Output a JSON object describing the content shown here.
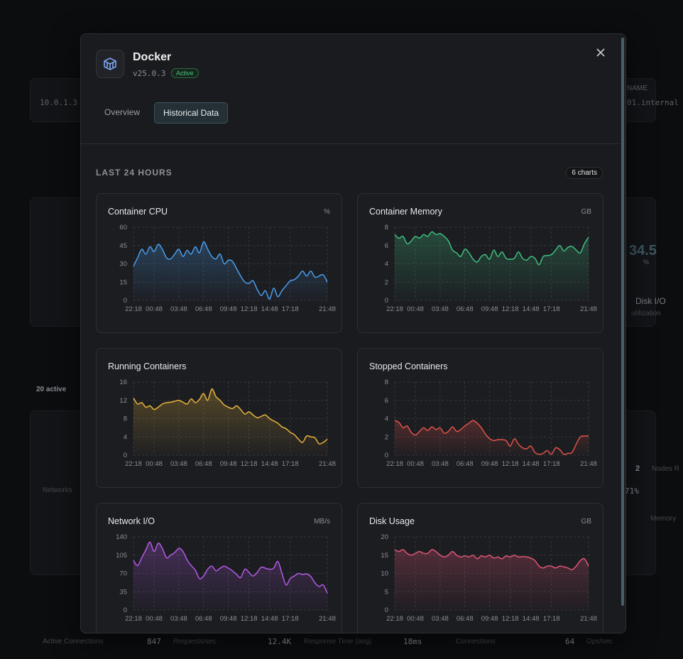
{
  "background": {
    "texts": [
      "10.0.1.3",
      "NAME",
      "01.internal",
      "34.5",
      "%",
      "Disk I/O",
      "utilization",
      "20 active",
      "2",
      "Nodes R",
      "Networks",
      "71%",
      "Memory",
      "Active Connections",
      "847",
      "Requests/sec",
      "12.4K",
      "Response Time (avg)",
      "18ms",
      "Connections",
      "64",
      "Ops/sec"
    ]
  },
  "modal": {
    "title": "Docker",
    "version": "v25.0.3",
    "status": "Active",
    "tabs": [
      "Overview",
      "Historical Data"
    ],
    "section": "LAST 24 HOURS",
    "count": "6 charts"
  },
  "chart_data": [
    {
      "type": "line",
      "title": "Container CPU",
      "unit": "%",
      "color": "#4a9eed",
      "grid": true,
      "categories": [
        "22:18",
        null,
        null,
        null,
        null,
        "00:48",
        null,
        null,
        null,
        null,
        null,
        "03:48",
        null,
        null,
        null,
        null,
        null,
        "06:48",
        null,
        null,
        null,
        null,
        null,
        "09:48",
        null,
        null,
        null,
        null,
        "12:18",
        null,
        null,
        null,
        null,
        "14:48",
        null,
        null,
        null,
        null,
        "17:18",
        null,
        null,
        null,
        null,
        null,
        null,
        null,
        null,
        "21:48"
      ],
      "values": [
        28,
        35,
        42,
        38,
        44,
        40,
        46,
        42,
        35,
        34,
        38,
        42,
        36,
        41,
        38,
        44,
        39,
        48,
        42,
        36,
        34,
        38,
        30,
        33,
        32,
        26,
        20,
        15,
        14,
        16,
        9,
        4,
        8,
        1,
        10,
        3,
        8,
        12,
        16,
        17,
        20,
        24,
        20,
        24,
        19,
        20,
        21,
        15
      ],
      "ylim": [
        0,
        60
      ],
      "yticks": [
        0,
        15,
        30,
        45,
        60
      ]
    },
    {
      "type": "line",
      "title": "Container Memory",
      "unit": "GB",
      "color": "#3fbf7f",
      "grid": true,
      "categories": [
        "22:18",
        null,
        null,
        null,
        null,
        "00:48",
        null,
        null,
        null,
        null,
        null,
        "03:48",
        null,
        null,
        null,
        null,
        null,
        "06:48",
        null,
        null,
        null,
        null,
        null,
        "09:48",
        null,
        null,
        null,
        null,
        "12:18",
        null,
        null,
        null,
        null,
        "14:48",
        null,
        null,
        null,
        null,
        "17:18",
        null,
        null,
        null,
        null,
        null,
        null,
        null,
        null,
        "21:48"
      ],
      "values": [
        7.2,
        6.8,
        7,
        6.2,
        6.5,
        7,
        6.8,
        7.2,
        7,
        7.5,
        7.2,
        7.3,
        7,
        6.5,
        5.5,
        5.2,
        4.8,
        5.6,
        5.2,
        4.5,
        4.2,
        4.8,
        5,
        4.5,
        5.5,
        4.8,
        5.3,
        4.6,
        4.5,
        4.6,
        5.3,
        4.6,
        4.4,
        4.8,
        4.6,
        3.9,
        4.8,
        4.9,
        5,
        5.5,
        6,
        5.4,
        5.8,
        5.9,
        5.5,
        5.2,
        6.2,
        6.9
      ],
      "ylim": [
        0,
        8
      ],
      "yticks": [
        0,
        2,
        4,
        6,
        8
      ]
    },
    {
      "type": "line",
      "title": "Running Containers",
      "color": "#e8b53a",
      "grid": true,
      "categories": [
        "22:18",
        null,
        null,
        null,
        null,
        "00:48",
        null,
        null,
        null,
        null,
        null,
        "03:48",
        null,
        null,
        null,
        null,
        null,
        "06:48",
        null,
        null,
        null,
        null,
        null,
        "09:48",
        null,
        null,
        null,
        null,
        "12:18",
        null,
        null,
        null,
        null,
        "14:48",
        null,
        null,
        null,
        null,
        "17:18",
        null,
        null,
        null,
        null,
        null,
        null,
        null,
        null,
        "21:48"
      ],
      "values": [
        12.5,
        11.2,
        11.5,
        10.5,
        10.8,
        10,
        10.5,
        11.2,
        11.5,
        11.6,
        11.8,
        12,
        11.6,
        11.2,
        12.3,
        11.5,
        12.2,
        13.5,
        12,
        14.5,
        12.8,
        12,
        11,
        10.5,
        10.2,
        10.8,
        10,
        9,
        9.5,
        8.8,
        8.2,
        8.5,
        8.8,
        8,
        7.5,
        7,
        6.2,
        5.8,
        5,
        4.5,
        3.5,
        2.8,
        4.2,
        4,
        3.8,
        2.5,
        2.8,
        3.5
      ],
      "ylim": [
        0,
        16
      ],
      "yticks": [
        0,
        4,
        8,
        12,
        16
      ]
    },
    {
      "type": "line",
      "title": "Stopped Containers",
      "color": "#e0524a",
      "grid": true,
      "categories": [
        "22:18",
        null,
        null,
        null,
        null,
        "00:48",
        null,
        null,
        null,
        null,
        null,
        "03:48",
        null,
        null,
        null,
        null,
        null,
        "06:48",
        null,
        null,
        null,
        null,
        null,
        "09:48",
        null,
        null,
        null,
        null,
        "12:18",
        null,
        null,
        null,
        null,
        "14:48",
        null,
        null,
        null,
        null,
        "17:18",
        null,
        null,
        null,
        null,
        null,
        null,
        null,
        null,
        "21:48"
      ],
      "values": [
        3.8,
        3.6,
        3,
        3.2,
        2.5,
        2.2,
        2.6,
        3,
        2.7,
        3.1,
        2.8,
        3,
        2.4,
        2.6,
        3.1,
        2.6,
        2.8,
        3.2,
        3.5,
        3.8,
        3.5,
        3,
        2.3,
        1.8,
        1.6,
        1.7,
        1.7,
        1.6,
        1,
        1.8,
        1.2,
        0.8,
        0.7,
        1,
        0.3,
        0.1,
        0.2,
        0.5,
        0.1,
        0.8,
        0.6,
        0.1,
        0.2,
        0.3,
        1.2,
        2,
        2.1,
        2.1
      ],
      "ylim": [
        0,
        8
      ],
      "yticks": [
        0,
        2,
        4,
        6,
        8
      ]
    },
    {
      "type": "line",
      "title": "Network I/O",
      "unit": "MB/s",
      "color": "#b45ae6",
      "grid": true,
      "categories": [
        "22:18",
        null,
        null,
        null,
        null,
        "00:48",
        null,
        null,
        null,
        null,
        null,
        "03:48",
        null,
        null,
        null,
        null,
        null,
        "06:48",
        null,
        null,
        null,
        null,
        null,
        "09:48",
        null,
        null,
        null,
        null,
        "12:18",
        null,
        null,
        null,
        null,
        "14:48",
        null,
        null,
        null,
        null,
        "17:18",
        null,
        null,
        null,
        null,
        null,
        null,
        null,
        null,
        "21:48"
      ],
      "values": [
        95,
        85,
        100,
        115,
        130,
        112,
        128,
        118,
        100,
        105,
        110,
        118,
        112,
        96,
        85,
        76,
        60,
        65,
        78,
        84,
        75,
        80,
        84,
        80,
        75,
        68,
        62,
        78,
        72,
        65,
        72,
        82,
        80,
        78,
        80,
        93,
        70,
        48,
        60,
        65,
        70,
        68,
        69,
        64,
        52,
        45,
        48,
        32
      ],
      "ylim": [
        0,
        140
      ],
      "yticks": [
        0,
        35,
        70,
        105,
        140
      ]
    },
    {
      "type": "line",
      "title": "Disk Usage",
      "unit": "GB",
      "color": "#e05576",
      "grid": true,
      "categories": [
        "22:18",
        null,
        null,
        null,
        null,
        "00:48",
        null,
        null,
        null,
        null,
        null,
        "03:48",
        null,
        null,
        null,
        null,
        null,
        "06:48",
        null,
        null,
        null,
        null,
        null,
        "09:48",
        null,
        null,
        null,
        null,
        "12:18",
        null,
        null,
        null,
        null,
        "14:48",
        null,
        null,
        null,
        null,
        "17:18",
        null,
        null,
        null,
        null,
        null,
        null,
        null,
        null,
        "21:48"
      ],
      "values": [
        16.5,
        16,
        16.5,
        15.5,
        15,
        15.5,
        16,
        15.5,
        15.5,
        16.5,
        16,
        15,
        14.5,
        15,
        16,
        15,
        14.5,
        14.8,
        14.5,
        15,
        14,
        14.8,
        14.5,
        15,
        14.2,
        14.5,
        14,
        14.8,
        14.5,
        15,
        14.5,
        14.6,
        14.5,
        14.2,
        13.5,
        12,
        11.5,
        12,
        12,
        11.5,
        12,
        11.8,
        11.5,
        11,
        12,
        13.5,
        14,
        12
      ],
      "ylim": [
        0,
        20
      ],
      "yticks": [
        0,
        5,
        10,
        15,
        20
      ]
    }
  ]
}
